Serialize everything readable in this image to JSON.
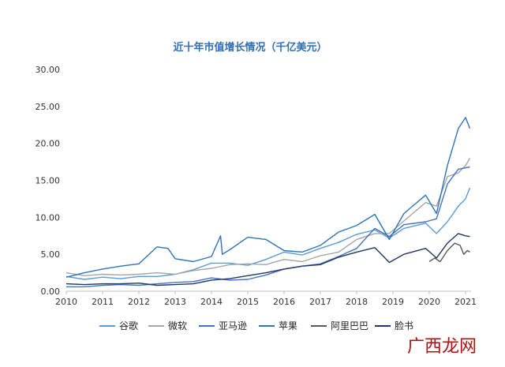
{
  "chart_data": {
    "type": "line",
    "title": "近十年市值增长情况（千亿美元）",
    "xlabel": "",
    "ylabel": "",
    "xlim": [
      2010,
      2021.15
    ],
    "ylim": [
      0,
      30
    ],
    "x_ticks": [
      "2010",
      "2011",
      "2012",
      "2013",
      "2014",
      "2015",
      "2016",
      "2017",
      "2018",
      "2019",
      "2020",
      "2021"
    ],
    "y_ticks": [
      "0.00",
      "5.00",
      "10.00",
      "15.00",
      "20.00",
      "25.00",
      "30.00"
    ],
    "grid": false,
    "legend_position": "bottom",
    "series": [
      {
        "name": "谷歌",
        "color": "#5b9bd5",
        "points": [
          [
            2010,
            2.0
          ],
          [
            2010.5,
            1.6
          ],
          [
            2011,
            1.9
          ],
          [
            2011.5,
            1.7
          ],
          [
            2012,
            2.0
          ],
          [
            2012.5,
            2.0
          ],
          [
            2013,
            2.3
          ],
          [
            2013.5,
            2.9
          ],
          [
            2014,
            3.8
          ],
          [
            2014.5,
            3.8
          ],
          [
            2015,
            3.5
          ],
          [
            2015.5,
            4.3
          ],
          [
            2016,
            5.3
          ],
          [
            2016.5,
            4.9
          ],
          [
            2017,
            5.8
          ],
          [
            2017.5,
            6.6
          ],
          [
            2018,
            7.7
          ],
          [
            2018.5,
            8.3
          ],
          [
            2018.9,
            7.2
          ],
          [
            2019.3,
            8.5
          ],
          [
            2019.9,
            9.2
          ],
          [
            2020.2,
            7.8
          ],
          [
            2020.5,
            9.4
          ],
          [
            2020.8,
            11.5
          ],
          [
            2021,
            12.5
          ],
          [
            2021.12,
            14.0
          ]
        ]
      },
      {
        "name": "微软",
        "color": "#a5a5a5",
        "points": [
          [
            2010,
            2.5
          ],
          [
            2010.5,
            2.1
          ],
          [
            2011,
            2.3
          ],
          [
            2011.5,
            2.2
          ],
          [
            2012,
            2.3
          ],
          [
            2012.5,
            2.5
          ],
          [
            2013,
            2.3
          ],
          [
            2013.5,
            2.8
          ],
          [
            2014,
            3.1
          ],
          [
            2014.5,
            3.6
          ],
          [
            2015,
            3.7
          ],
          [
            2015.5,
            3.6
          ],
          [
            2016,
            4.3
          ],
          [
            2016.5,
            4.0
          ],
          [
            2017,
            4.8
          ],
          [
            2017.5,
            5.3
          ],
          [
            2018,
            7.0
          ],
          [
            2018.5,
            7.8
          ],
          [
            2018.9,
            7.8
          ],
          [
            2019.3,
            9.5
          ],
          [
            2019.9,
            12.0
          ],
          [
            2020.2,
            11.5
          ],
          [
            2020.5,
            15.5
          ],
          [
            2020.8,
            16.0
          ],
          [
            2021,
            17.0
          ],
          [
            2021.12,
            18.0
          ]
        ]
      },
      {
        "name": "亚马逊",
        "color": "#4472c4",
        "points": [
          [
            2010,
            0.6
          ],
          [
            2010.5,
            0.6
          ],
          [
            2011,
            0.8
          ],
          [
            2011.5,
            0.9
          ],
          [
            2012,
            0.8
          ],
          [
            2012.5,
            1.0
          ],
          [
            2013,
            1.2
          ],
          [
            2013.5,
            1.3
          ],
          [
            2014,
            1.8
          ],
          [
            2014.5,
            1.5
          ],
          [
            2015,
            1.6
          ],
          [
            2015.5,
            2.2
          ],
          [
            2016,
            3.0
          ],
          [
            2016.5,
            3.4
          ],
          [
            2017,
            3.7
          ],
          [
            2017.5,
            4.7
          ],
          [
            2018,
            5.8
          ],
          [
            2018.5,
            8.5
          ],
          [
            2018.9,
            7.4
          ],
          [
            2019.3,
            9.0
          ],
          [
            2019.9,
            9.4
          ],
          [
            2020.2,
            9.8
          ],
          [
            2020.5,
            14.5
          ],
          [
            2020.8,
            16.5
          ],
          [
            2021,
            16.7
          ],
          [
            2021.12,
            16.8
          ]
        ]
      },
      {
        "name": "苹果",
        "color": "#2e75b6",
        "points": [
          [
            2010,
            1.9
          ],
          [
            2010.5,
            2.5
          ],
          [
            2011,
            3.0
          ],
          [
            2011.5,
            3.4
          ],
          [
            2012,
            3.7
          ],
          [
            2012.5,
            6.0
          ],
          [
            2012.8,
            5.8
          ],
          [
            2013,
            4.4
          ],
          [
            2013.5,
            4.0
          ],
          [
            2014,
            4.7
          ],
          [
            2014.25,
            7.5
          ],
          [
            2014.3,
            5.0
          ],
          [
            2014.5,
            5.6
          ],
          [
            2015,
            7.3
          ],
          [
            2015.5,
            7.0
          ],
          [
            2016,
            5.5
          ],
          [
            2016.5,
            5.3
          ],
          [
            2017,
            6.2
          ],
          [
            2017.5,
            8.0
          ],
          [
            2018,
            8.9
          ],
          [
            2018.5,
            10.4
          ],
          [
            2018.9,
            7.0
          ],
          [
            2019.3,
            10.5
          ],
          [
            2019.9,
            13.0
          ],
          [
            2020.2,
            10.5
          ],
          [
            2020.5,
            17.0
          ],
          [
            2020.8,
            22.0
          ],
          [
            2021,
            23.5
          ],
          [
            2021.12,
            22.0
          ]
        ]
      },
      {
        "name": "阿里巴巴",
        "color": "#595959",
        "points": [
          [
            2020,
            4.0
          ],
          [
            2020.15,
            4.5
          ],
          [
            2020.3,
            4.0
          ],
          [
            2020.5,
            5.5
          ],
          [
            2020.7,
            6.5
          ],
          [
            2020.85,
            6.2
          ],
          [
            2020.95,
            5.0
          ],
          [
            2021.05,
            5.5
          ],
          [
            2021.12,
            5.3
          ]
        ]
      },
      {
        "name": "脸书",
        "color": "#203864",
        "points": [
          [
            2010,
            1.0
          ],
          [
            2010.5,
            0.9
          ],
          [
            2011,
            1.0
          ],
          [
            2011.5,
            1.0
          ],
          [
            2012,
            1.1
          ],
          [
            2012.5,
            0.8
          ],
          [
            2013,
            0.9
          ],
          [
            2013.5,
            1.0
          ],
          [
            2014,
            1.5
          ],
          [
            2014.5,
            1.7
          ],
          [
            2015,
            2.1
          ],
          [
            2015.5,
            2.5
          ],
          [
            2016,
            3.0
          ],
          [
            2016.5,
            3.4
          ],
          [
            2017,
            3.6
          ],
          [
            2017.5,
            4.6
          ],
          [
            2018,
            5.3
          ],
          [
            2018.5,
            5.9
          ],
          [
            2018.9,
            3.9
          ],
          [
            2019.3,
            5.0
          ],
          [
            2019.9,
            5.8
          ],
          [
            2020.2,
            4.5
          ],
          [
            2020.5,
            6.5
          ],
          [
            2020.8,
            7.8
          ],
          [
            2021,
            7.5
          ],
          [
            2021.12,
            7.4
          ]
        ]
      }
    ]
  },
  "watermark": {
    "text": "广西龙网",
    "color": "#b01010"
  }
}
